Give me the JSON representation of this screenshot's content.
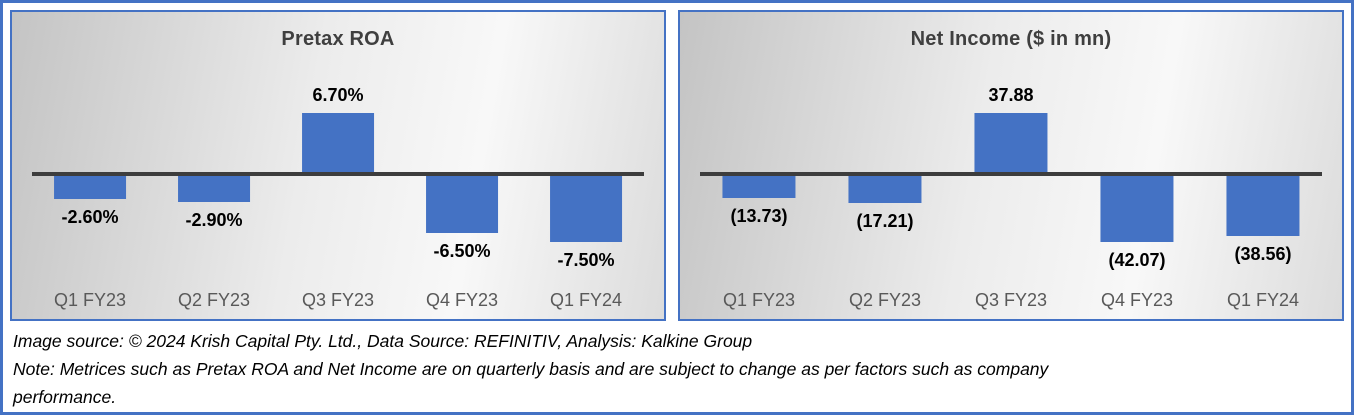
{
  "style": {
    "bar_color": "#4472C4",
    "axis_color": "#3d3d3d",
    "border_color": "#4472C4",
    "title_color": "#3f3f3f",
    "category_label_color": "#595959",
    "value_label_color": "#000000"
  },
  "chart_data": [
    {
      "type": "bar",
      "title": "Pretax ROA",
      "categories": [
        "Q1 FY23",
        "Q2 FY23",
        "Q3 FY23",
        "Q4 FY23",
        "Q1 FY24"
      ],
      "values": [
        -2.6,
        -2.9,
        6.7,
        -6.5,
        -7.5
      ],
      "value_labels": [
        "-2.60%",
        "-2.90%",
        "6.70%",
        "-6.50%",
        "-7.50%"
      ],
      "bar_color": "#4472C4",
      "xlabel": "",
      "ylabel": "",
      "ylim": [
        -7.5,
        6.7
      ],
      "grid": false,
      "legend": false
    },
    {
      "type": "bar",
      "title": "Net Income ($ in mn)",
      "categories": [
        "Q1 FY23",
        "Q2 FY23",
        "Q3 FY23",
        "Q4 FY23",
        "Q1 FY24"
      ],
      "values": [
        -13.73,
        -17.21,
        37.88,
        -42.07,
        -38.56
      ],
      "value_labels": [
        "(13.73)",
        "(17.21)",
        "37.88",
        "(42.07)",
        "(38.56)"
      ],
      "bar_color": "#4472C4",
      "xlabel": "",
      "ylabel": "",
      "ylim": [
        -42.07,
        37.88
      ],
      "grid": false,
      "legend": false
    }
  ],
  "footer": {
    "lines": [
      "Image source: © 2024 Krish Capital Pty. Ltd., Data Source: REFINITIV, Analysis: Kalkine Group",
      "Note: Metrices such as Pretax ROA and Net Income are on quarterly basis and are subject to change as per factors such as company",
      "performance."
    ]
  }
}
